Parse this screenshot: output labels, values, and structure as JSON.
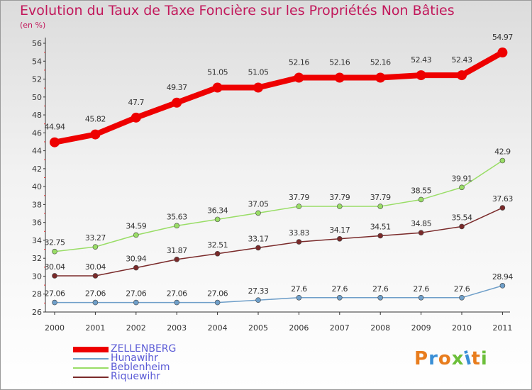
{
  "chart_data": {
    "type": "line",
    "title": "Evolution du Taux de Taxe Foncière sur les Propriétés Non Bâties",
    "unit_label": "(en %)",
    "x": [
      "2000",
      "2001",
      "2002",
      "2003",
      "2004",
      "2005",
      "2006",
      "2007",
      "2008",
      "2009",
      "2010",
      "2011"
    ],
    "ylim": [
      26,
      56
    ],
    "yticks": [
      26,
      28,
      30,
      32,
      34,
      36,
      38,
      40,
      42,
      44,
      46,
      48,
      50,
      52,
      54,
      56
    ],
    "grid": false,
    "legend_position": "bottom-left",
    "series": [
      {
        "name": "ZELLENBERG",
        "color": "#ee0000",
        "values": [
          44.94,
          45.82,
          47.7,
          49.37,
          51.05,
          51.05,
          52.16,
          52.16,
          52.16,
          52.43,
          52.43,
          54.97
        ],
        "labels": [
          "44.94",
          "45.82",
          "47.7",
          "49.37",
          "51.05",
          "51.05",
          "52.16",
          "52.16",
          "52.16",
          "52.43",
          "52.43",
          "54.97"
        ]
      },
      {
        "name": "Hunawihr",
        "color": "#6f9fc9",
        "values": [
          27.06,
          27.06,
          27.06,
          27.06,
          27.06,
          27.33,
          27.6,
          27.6,
          27.6,
          27.6,
          27.6,
          28.94
        ],
        "labels": [
          "27.06",
          "27.06",
          "27.06",
          "27.06",
          "27.06",
          "27.33",
          "27.6",
          "27.6",
          "27.6",
          "27.6",
          "27.6",
          "28.94"
        ]
      },
      {
        "name": "Beblenheim",
        "color": "#99dd66",
        "values": [
          32.75,
          33.27,
          34.59,
          35.63,
          36.34,
          37.05,
          37.79,
          37.79,
          37.79,
          38.55,
          39.91,
          42.9
        ],
        "labels": [
          "32.75",
          "33.27",
          "34.59",
          "35.63",
          "36.34",
          "37.05",
          "37.79",
          "37.79",
          "37.79",
          "38.55",
          "39.91",
          "42.9"
        ]
      },
      {
        "name": "Riquewihr",
        "color": "#7a2a2a",
        "values": [
          30.04,
          30.04,
          30.94,
          31.87,
          32.51,
          33.17,
          33.83,
          34.17,
          34.51,
          34.85,
          35.54,
          37.63
        ],
        "labels": [
          "30.04",
          "30.04",
          "30.94",
          "31.87",
          "32.51",
          "33.17",
          "33.83",
          "34.17",
          "34.51",
          "34.85",
          "35.54",
          "37.63"
        ]
      }
    ]
  },
  "logo": {
    "text": "Proxiti",
    "colors": [
      "#e87d1e",
      "#3a8fd6",
      "#e87d1e",
      "#6cbf3a",
      "#3a8fd6",
      "#e87d1e",
      "#6cbf3a"
    ]
  }
}
